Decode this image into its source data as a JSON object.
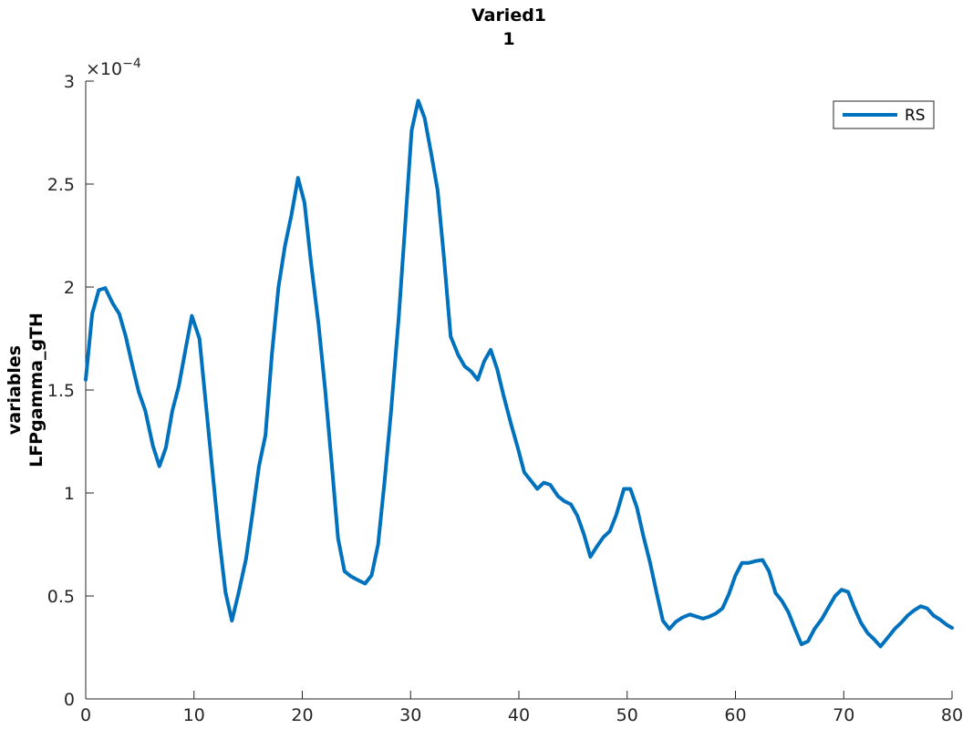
{
  "chart_data": {
    "type": "line",
    "title": "Varied1",
    "subtitle": "1",
    "xlabel": "",
    "ylabel": [
      "variables",
      "LFPgamma_gTH"
    ],
    "xlim": [
      0,
      80
    ],
    "ylim": [
      0,
      3
    ],
    "y_exponent_label": "×10",
    "y_exponent": "−4",
    "x_ticks": [
      "0",
      "10",
      "20",
      "30",
      "40",
      "50",
      "60",
      "70",
      "80"
    ],
    "y_ticks": [
      "0",
      "0.5",
      "1",
      "1.5",
      "2",
      "2.5",
      "3"
    ],
    "legend_position": "top-right",
    "series": [
      {
        "name": "RS",
        "color": "#0072bd",
        "x": [
          0,
          0.6,
          1.2,
          1.8,
          2.5,
          3.1,
          3.7,
          4.3,
          4.9,
          5.5,
          6.2,
          6.8,
          7.4,
          8.0,
          8.6,
          9.3,
          9.8,
          10.5,
          11.1,
          11.7,
          12.3,
          12.9,
          13.5,
          14.1,
          14.8,
          15.4,
          16.0,
          16.6,
          17.2,
          17.8,
          18.4,
          19.0,
          19.6,
          20.2,
          20.8,
          21.5,
          22.1,
          22.7,
          23.3,
          23.9,
          24.5,
          25.2,
          25.8,
          26.4,
          27.0,
          27.6,
          28.2,
          28.9,
          29.5,
          30.1,
          30.7,
          31.3,
          31.9,
          32.5,
          33.1,
          33.7,
          34.4,
          35.0,
          35.6,
          36.2,
          36.8,
          37.4,
          38.0,
          38.6,
          39.3,
          39.9,
          40.5,
          41.1,
          41.7,
          42.3,
          42.9,
          43.6,
          44.2,
          44.8,
          45.4,
          46.0,
          46.6,
          47.2,
          47.8,
          48.4,
          49.0,
          49.7,
          50.3,
          50.9,
          51.5,
          52.1,
          52.7,
          53.3,
          53.9,
          54.5,
          55.1,
          55.8,
          56.4,
          57.0,
          57.6,
          58.2,
          58.8,
          59.4,
          60.0,
          60.6,
          61.2,
          61.9,
          62.5,
          63.1,
          63.7,
          64.3,
          64.9,
          65.5,
          66.1,
          66.7,
          67.3,
          68.0,
          68.6,
          69.2,
          69.8,
          70.4,
          71.0,
          71.6,
          72.2,
          72.8,
          73.4,
          74.1,
          74.7,
          75.3,
          75.9,
          76.5,
          77.1,
          77.7,
          78.3,
          78.9,
          79.5,
          80.0
        ],
        "y": [
          1.55,
          1.87,
          1.985,
          1.995,
          1.92,
          1.87,
          1.76,
          1.62,
          1.49,
          1.4,
          1.23,
          1.13,
          1.22,
          1.4,
          1.52,
          1.72,
          1.86,
          1.75,
          1.43,
          1.11,
          0.79,
          0.52,
          0.38,
          0.51,
          0.68,
          0.9,
          1.13,
          1.28,
          1.68,
          2.0,
          2.2,
          2.35,
          2.53,
          2.41,
          2.12,
          1.82,
          1.51,
          1.15,
          0.78,
          0.62,
          0.595,
          0.575,
          0.56,
          0.6,
          0.75,
          1.06,
          1.4,
          1.85,
          2.3,
          2.76,
          2.905,
          2.82,
          2.65,
          2.47,
          2.13,
          1.76,
          1.67,
          1.615,
          1.59,
          1.55,
          1.64,
          1.695,
          1.6,
          1.47,
          1.33,
          1.22,
          1.1,
          1.06,
          1.02,
          1.05,
          1.04,
          0.985,
          0.96,
          0.945,
          0.89,
          0.8,
          0.69,
          0.74,
          0.785,
          0.815,
          0.895,
          1.02,
          1.02,
          0.93,
          0.79,
          0.665,
          0.52,
          0.38,
          0.34,
          0.375,
          0.395,
          0.41,
          0.4,
          0.39,
          0.4,
          0.415,
          0.44,
          0.51,
          0.6,
          0.66,
          0.66,
          0.67,
          0.675,
          0.62,
          0.515,
          0.475,
          0.42,
          0.34,
          0.265,
          0.28,
          0.34,
          0.39,
          0.445,
          0.5,
          0.53,
          0.52,
          0.44,
          0.37,
          0.32,
          0.29,
          0.255,
          0.3,
          0.34,
          0.37,
          0.405,
          0.43,
          0.45,
          0.44,
          0.405,
          0.385,
          0.36,
          0.345
        ]
      }
    ]
  }
}
